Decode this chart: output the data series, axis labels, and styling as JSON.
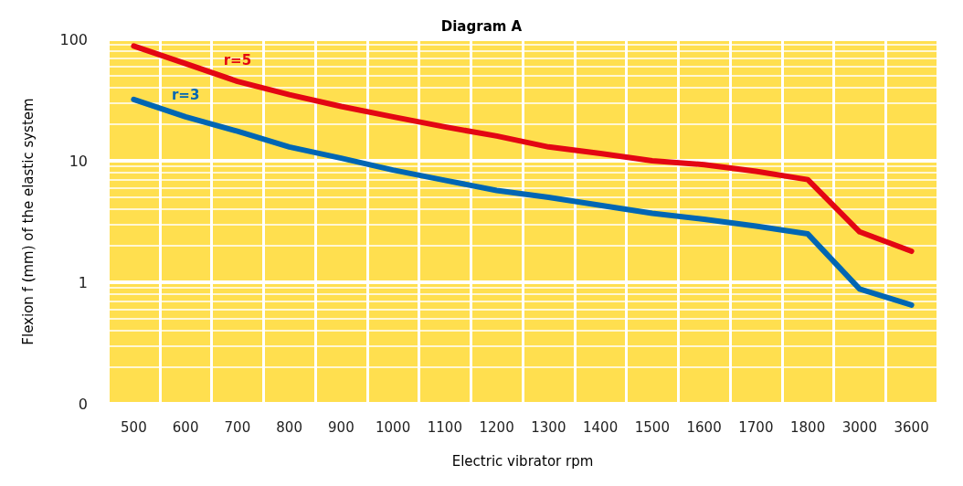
{
  "chart_data": {
    "type": "line",
    "title": "Diagram A",
    "xlabel": "Electric vibrator rpm",
    "ylabel": "Flexion f (mm) of the elastic system",
    "categories": [
      "500",
      "600",
      "700",
      "800",
      "900",
      "1000",
      "1100",
      "1200",
      "1300",
      "1400",
      "1500",
      "1600",
      "1700",
      "1800",
      "3000",
      "3600"
    ],
    "series": [
      {
        "name": "r=5",
        "color": "#e30613",
        "values": [
          88,
          63,
          45,
          35,
          28,
          23,
          19,
          16,
          13,
          11.5,
          10,
          9.3,
          8.2,
          7,
          2.6,
          1.8
        ]
      },
      {
        "name": "r=3",
        "color": "#0066b3",
        "values": [
          32,
          23,
          17.5,
          13,
          10.5,
          8.4,
          6.9,
          5.7,
          5,
          4.3,
          3.7,
          3.3,
          2.9,
          2.5,
          0.88,
          0.65
        ]
      }
    ],
    "log": "y",
    "ylim": [
      0.1,
      100
    ],
    "yticks": [
      {
        "value": 0.1,
        "label": "0"
      },
      1,
      10,
      100
    ],
    "grid": true,
    "legend": false,
    "marker": "none",
    "line_style": "solid"
  }
}
